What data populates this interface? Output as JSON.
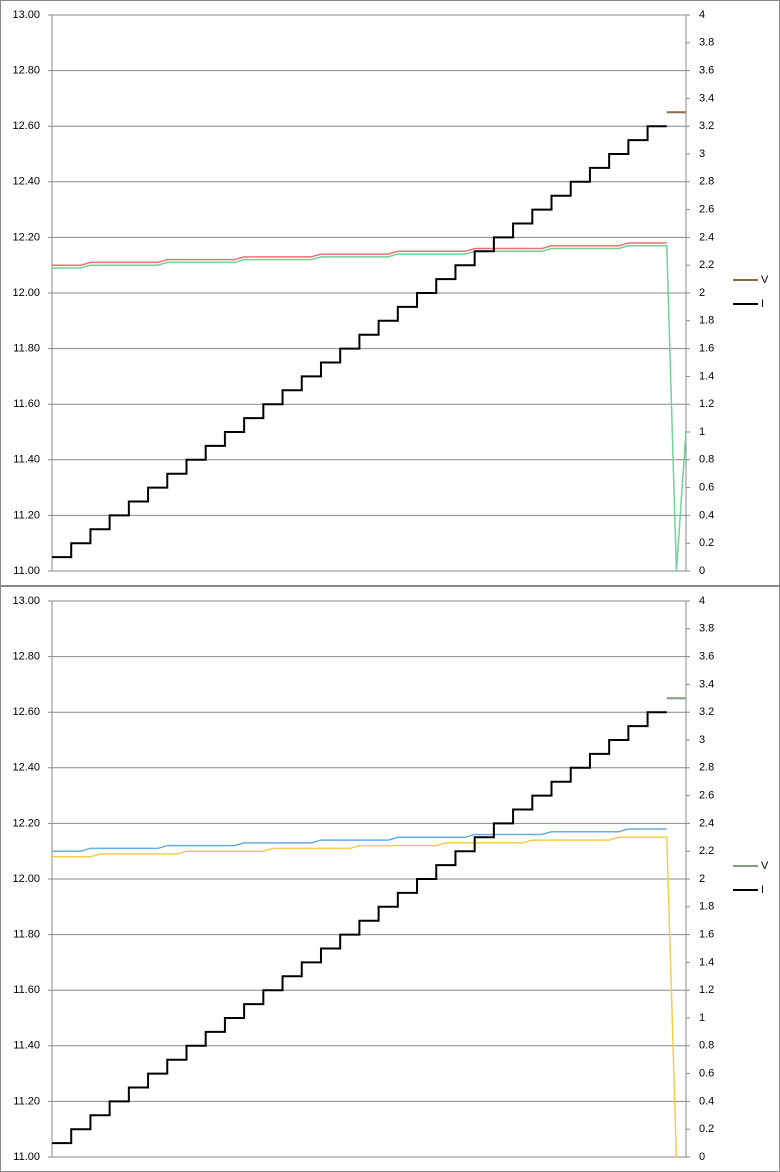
{
  "chart_data": [
    {
      "type": "line",
      "ylim": [
        11,
        13
      ],
      "yticks": [
        {
          "value": 11,
          "label": "11.00"
        },
        {
          "value": 11.2,
          "label": "11.20"
        },
        {
          "value": 11.4,
          "label": "11.40"
        },
        {
          "value": 11.6,
          "label": "11.60"
        },
        {
          "value": 11.8,
          "label": "11.80"
        },
        {
          "value": 12,
          "label": "12.00"
        },
        {
          "value": 12.2,
          "label": "12.20"
        },
        {
          "value": 12.4,
          "label": "12.40"
        },
        {
          "value": 12.6,
          "label": "12.60"
        },
        {
          "value": 12.8,
          "label": "12.80"
        },
        {
          "value": 13,
          "label": "13.00"
        }
      ],
      "y2lim": [
        0,
        4
      ],
      "y2ticks": [
        0,
        0.2,
        0.4,
        0.6,
        0.8,
        1,
        1.2,
        1.4,
        1.6,
        1.8,
        2,
        2.2,
        2.4,
        2.6,
        2.8,
        3,
        3.2,
        3.4,
        3.6,
        3.8,
        4
      ],
      "grid": true,
      "legend": "right",
      "series": [
        {
          "color": "#f07070",
          "values": [
            12.1,
            12.1,
            12.1,
            12.1,
            12.11,
            12.11,
            12.11,
            12.11,
            12.11,
            12.11,
            12.11,
            12.11,
            12.12,
            12.12,
            12.12,
            12.12,
            12.12,
            12.12,
            12.12,
            12.12,
            12.13,
            12.13,
            12.13,
            12.13,
            12.13,
            12.13,
            12.13,
            12.13,
            12.14,
            12.14,
            12.14,
            12.14,
            12.14,
            12.14,
            12.14,
            12.14,
            12.15,
            12.15,
            12.15,
            12.15,
            12.15,
            12.15,
            12.15,
            12.15,
            12.16,
            12.16,
            12.16,
            12.16,
            12.16,
            12.16,
            12.16,
            12.16,
            12.17,
            12.17,
            12.17,
            12.17,
            12.17,
            12.17,
            12.17,
            12.17,
            12.18,
            12.18,
            12.18,
            12.18,
            12.18,
            null,
            null
          ]
        },
        {
          "color": "#6fd39a",
          "values": [
            12.09,
            12.09,
            12.09,
            12.09,
            12.1,
            12.1,
            12.1,
            12.1,
            12.1,
            12.1,
            12.1,
            12.1,
            12.11,
            12.11,
            12.11,
            12.11,
            12.11,
            12.11,
            12.11,
            12.11,
            12.12,
            12.12,
            12.12,
            12.12,
            12.12,
            12.12,
            12.12,
            12.12,
            12.13,
            12.13,
            12.13,
            12.13,
            12.13,
            12.13,
            12.13,
            12.13,
            12.14,
            12.14,
            12.14,
            12.14,
            12.14,
            12.14,
            12.14,
            12.14,
            12.15,
            12.15,
            12.15,
            12.15,
            12.15,
            12.15,
            12.15,
            12.15,
            12.16,
            12.16,
            12.16,
            12.16,
            12.16,
            12.16,
            12.16,
            12.16,
            12.17,
            12.17,
            12.17,
            12.17,
            12.17,
            11.0,
            11.5
          ]
        },
        {
          "name": "V",
          "color": "#8b6a45",
          "axis": "y2",
          "step": true,
          "values": [
            null,
            null,
            null,
            null,
            null,
            null,
            null,
            null,
            null,
            null,
            null,
            null,
            null,
            null,
            null,
            null,
            null,
            null,
            null,
            null,
            null,
            null,
            null,
            null,
            null,
            null,
            null,
            null,
            null,
            null,
            null,
            null,
            null,
            null,
            null,
            null,
            null,
            null,
            null,
            null,
            null,
            null,
            null,
            null,
            null,
            null,
            null,
            null,
            null,
            null,
            null,
            null,
            null,
            null,
            null,
            null,
            null,
            null,
            null,
            null,
            null,
            null,
            null,
            null,
            3.3,
            3.3,
            3.3
          ]
        },
        {
          "name": "I",
          "color": "#000000",
          "axis": "y2",
          "step": true,
          "values": [
            0.1,
            0.1,
            0.2,
            0.2,
            0.3,
            0.3,
            0.4,
            0.4,
            0.5,
            0.5,
            0.6,
            0.6,
            0.7,
            0.7,
            0.8,
            0.8,
            0.9,
            0.9,
            1,
            1,
            1.1,
            1.1,
            1.2,
            1.2,
            1.3,
            1.3,
            1.4,
            1.4,
            1.5,
            1.5,
            1.6,
            1.6,
            1.7,
            1.7,
            1.8,
            1.8,
            1.9,
            1.9,
            2,
            2,
            2.1,
            2.1,
            2.2,
            2.2,
            2.3,
            2.3,
            2.4,
            2.4,
            2.5,
            2.5,
            2.6,
            2.6,
            2.7,
            2.7,
            2.8,
            2.8,
            2.9,
            2.9,
            3,
            3,
            3.1,
            3.1,
            3.2,
            3.2,
            null,
            null,
            null
          ]
        }
      ]
    },
    {
      "type": "line",
      "ylim": [
        11,
        13
      ],
      "yticks": [
        {
          "value": 11,
          "label": "11.00"
        },
        {
          "value": 11.2,
          "label": "11.20"
        },
        {
          "value": 11.4,
          "label": "11.40"
        },
        {
          "value": 11.6,
          "label": "11.60"
        },
        {
          "value": 11.8,
          "label": "11.80"
        },
        {
          "value": 12,
          "label": "12.00"
        },
        {
          "value": 12.2,
          "label": "12.20"
        },
        {
          "value": 12.4,
          "label": "12.40"
        },
        {
          "value": 12.6,
          "label": "12.60"
        },
        {
          "value": 12.8,
          "label": "12.80"
        },
        {
          "value": 13,
          "label": "13.00"
        }
      ],
      "y2lim": [
        0,
        4
      ],
      "y2ticks": [
        0,
        0.2,
        0.4,
        0.6,
        0.8,
        1,
        1.2,
        1.4,
        1.6,
        1.8,
        2,
        2.2,
        2.4,
        2.6,
        2.8,
        3,
        3.2,
        3.4,
        3.6,
        3.8,
        4
      ],
      "grid": true,
      "legend": "right",
      "series": [
        {
          "color": "#6aaee0",
          "values": [
            12.1,
            12.1,
            12.1,
            12.1,
            12.11,
            12.11,
            12.11,
            12.11,
            12.11,
            12.11,
            12.11,
            12.11,
            12.12,
            12.12,
            12.12,
            12.12,
            12.12,
            12.12,
            12.12,
            12.12,
            12.13,
            12.13,
            12.13,
            12.13,
            12.13,
            12.13,
            12.13,
            12.13,
            12.14,
            12.14,
            12.14,
            12.14,
            12.14,
            12.14,
            12.14,
            12.14,
            12.15,
            12.15,
            12.15,
            12.15,
            12.15,
            12.15,
            12.15,
            12.15,
            12.16,
            12.16,
            12.16,
            12.16,
            12.16,
            12.16,
            12.16,
            12.16,
            12.17,
            12.17,
            12.17,
            12.17,
            12.17,
            12.17,
            12.17,
            12.17,
            12.18,
            12.18,
            12.18,
            12.18,
            12.18,
            null,
            null
          ]
        },
        {
          "color": "#f5cd4a",
          "values": [
            12.08,
            12.08,
            12.08,
            12.08,
            12.08,
            12.09,
            12.09,
            12.09,
            12.09,
            12.09,
            12.09,
            12.09,
            12.09,
            12.09,
            12.1,
            12.1,
            12.1,
            12.1,
            12.1,
            12.1,
            12.1,
            12.1,
            12.1,
            12.11,
            12.11,
            12.11,
            12.11,
            12.11,
            12.11,
            12.11,
            12.11,
            12.11,
            12.12,
            12.12,
            12.12,
            12.12,
            12.12,
            12.12,
            12.12,
            12.12,
            12.12,
            12.13,
            12.13,
            12.13,
            12.13,
            12.13,
            12.13,
            12.13,
            12.13,
            12.13,
            12.14,
            12.14,
            12.14,
            12.14,
            12.14,
            12.14,
            12.14,
            12.14,
            12.14,
            12.15,
            12.15,
            12.15,
            12.15,
            12.15,
            12.15,
            11.0,
            null
          ]
        },
        {
          "name": "V",
          "color": "#7f9f7f",
          "axis": "y2",
          "step": true,
          "values": [
            null,
            null,
            null,
            null,
            null,
            null,
            null,
            null,
            null,
            null,
            null,
            null,
            null,
            null,
            null,
            null,
            null,
            null,
            null,
            null,
            null,
            null,
            null,
            null,
            null,
            null,
            null,
            null,
            null,
            null,
            null,
            null,
            null,
            null,
            null,
            null,
            null,
            null,
            null,
            null,
            null,
            null,
            null,
            null,
            null,
            null,
            null,
            null,
            null,
            null,
            null,
            null,
            null,
            null,
            null,
            null,
            null,
            null,
            null,
            null,
            null,
            null,
            null,
            null,
            3.3,
            3.3,
            3.3
          ]
        },
        {
          "name": "I",
          "color": "#000000",
          "axis": "y2",
          "step": true,
          "values": [
            0.1,
            0.1,
            0.2,
            0.2,
            0.3,
            0.3,
            0.4,
            0.4,
            0.5,
            0.5,
            0.6,
            0.6,
            0.7,
            0.7,
            0.8,
            0.8,
            0.9,
            0.9,
            1,
            1,
            1.1,
            1.1,
            1.2,
            1.2,
            1.3,
            1.3,
            1.4,
            1.4,
            1.5,
            1.5,
            1.6,
            1.6,
            1.7,
            1.7,
            1.8,
            1.8,
            1.9,
            1.9,
            2,
            2,
            2.1,
            2.1,
            2.2,
            2.2,
            2.3,
            2.3,
            2.4,
            2.4,
            2.5,
            2.5,
            2.6,
            2.6,
            2.7,
            2.7,
            2.8,
            2.8,
            2.9,
            2.9,
            3,
            3,
            3.1,
            3.1,
            3.2,
            3.2,
            null,
            null,
            null
          ]
        }
      ]
    }
  ]
}
